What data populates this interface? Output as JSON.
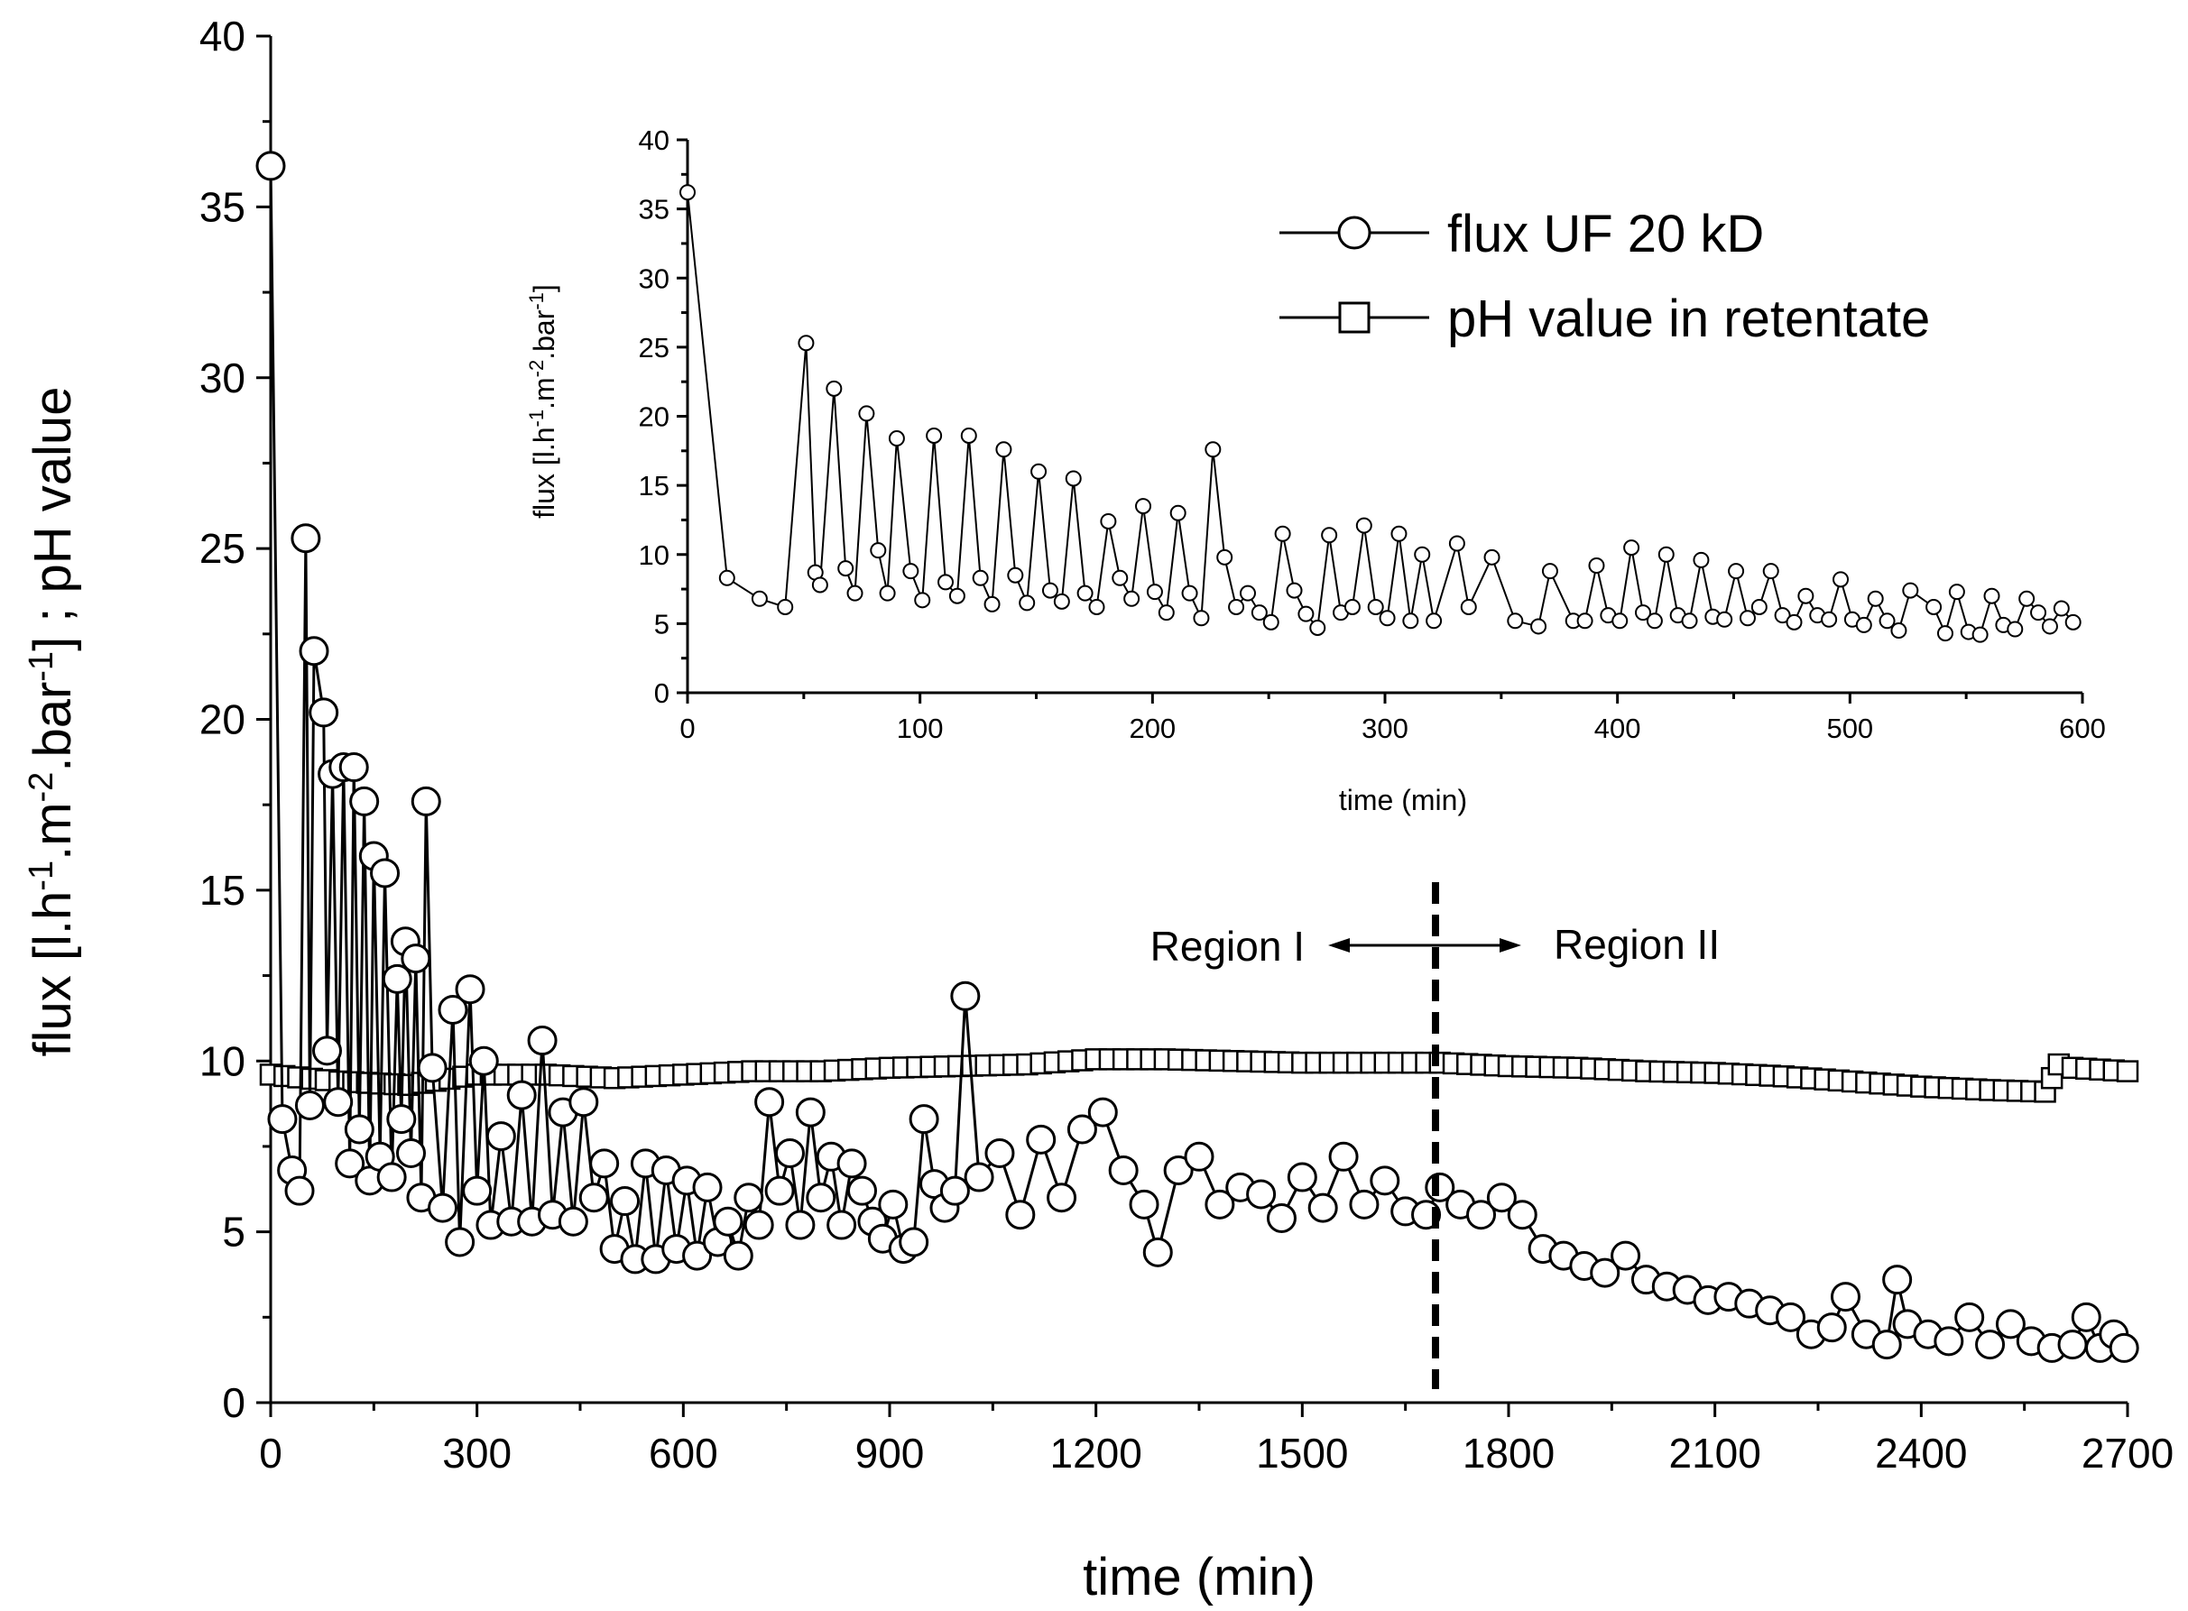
{
  "chart_data": [
    {
      "id": "main",
      "type": "line",
      "title": "",
      "xlabel": "time (min)",
      "ylabel": "flux [l.h^-1.m^-2.bar^-1] ; pH value",
      "xlim": [
        0,
        2700
      ],
      "ylim": [
        0,
        40
      ],
      "xticks": [
        0,
        300,
        600,
        900,
        1200,
        1500,
        1800,
        2100,
        2400,
        2700
      ],
      "yticks": [
        0,
        5,
        10,
        15,
        20,
        25,
        30,
        35,
        40
      ],
      "legend_position": "top-right",
      "annotations": {
        "region_left": "Region I",
        "region_right": "Region II",
        "boundary_x": 1690
      },
      "series": [
        {
          "name": "flux UF 20 kD",
          "marker": "circle",
          "x": [
            0,
            17,
            31,
            42,
            51,
            57,
            63,
            77,
            82,
            90,
            98,
            106,
            115,
            121,
            129,
            136,
            144,
            150,
            159,
            166,
            176,
            184,
            190,
            196,
            204,
            211,
            219,
            226,
            235,
            250,
            265,
            275,
            290,
            300,
            310,
            320,
            335,
            350,
            365,
            380,
            395,
            410,
            425,
            440,
            455,
            470,
            485,
            500,
            515,
            530,
            545,
            560,
            575,
            590,
            605,
            620,
            635,
            650,
            665,
            680,
            695,
            710,
            725,
            740,
            755,
            770,
            785,
            800,
            815,
            830,
            845,
            860,
            875,
            890,
            905,
            920,
            935,
            950,
            965,
            980,
            995,
            1010,
            1030,
            1060,
            1090,
            1120,
            1150,
            1180,
            1210,
            1240,
            1270,
            1290,
            1320,
            1350,
            1380,
            1410,
            1440,
            1470,
            1500,
            1530,
            1560,
            1590,
            1620,
            1650,
            1680,
            1700,
            1730,
            1760,
            1790,
            1820,
            1850,
            1880,
            1910,
            1940,
            1970,
            2000,
            2030,
            2060,
            2090,
            2120,
            2150,
            2180,
            2210,
            2240,
            2270,
            2290,
            2320,
            2350,
            2365,
            2380,
            2410,
            2440,
            2470,
            2500,
            2530,
            2560,
            2590,
            2620,
            2640,
            2660,
            2680,
            2695
          ],
          "values": [
            36.2,
            8.3,
            6.8,
            6.2,
            25.3,
            8.7,
            22.0,
            20.2,
            10.3,
            18.4,
            8.8,
            18.6,
            7.0,
            18.6,
            8.0,
            17.6,
            6.5,
            16.0,
            7.2,
            15.5,
            6.6,
            12.4,
            8.3,
            13.5,
            7.3,
            13.0,
            6.0,
            17.6,
            9.8,
            5.7,
            11.5,
            4.7,
            12.1,
            6.2,
            10.0,
            5.2,
            7.8,
            5.3,
            9.0,
            5.3,
            10.6,
            5.5,
            8.5,
            5.3,
            8.8,
            6.0,
            7.0,
            4.5,
            5.9,
            4.2,
            7.0,
            4.2,
            6.8,
            4.5,
            6.5,
            4.3,
            6.3,
            4.7,
            5.3,
            4.3,
            6.0,
            5.2,
            8.8,
            6.2,
            7.3,
            5.2,
            8.5,
            6.0,
            7.2,
            5.2,
            7.0,
            6.2,
            5.3,
            4.8,
            5.8,
            4.5,
            4.7,
            8.3,
            6.4,
            5.7,
            6.2,
            11.9,
            6.6,
            7.3,
            5.5,
            7.7,
            6.0,
            8.0,
            8.5,
            6.8,
            5.8,
            4.4,
            6.8,
            7.2,
            5.8,
            6.3,
            6.1,
            5.4,
            6.6,
            5.7,
            7.2,
            5.8,
            6.5,
            5.6,
            5.5,
            6.3,
            5.8,
            5.5,
            6.0,
            5.5,
            4.5,
            4.3,
            4.0,
            3.8,
            4.3,
            3.6,
            3.4,
            3.3,
            3.0,
            3.1,
            2.9,
            2.7,
            2.5,
            2.0,
            2.2,
            3.1,
            2.0,
            1.7,
            3.6,
            2.3,
            2.0,
            1.8,
            2.5,
            1.7,
            2.3,
            1.8,
            1.6,
            1.7,
            2.5,
            1.6,
            2.0,
            1.6
          ]
        },
        {
          "name": "pH value in retentate",
          "marker": "square",
          "x": [
            0,
            100,
            200,
            300,
            400,
            500,
            600,
            700,
            800,
            900,
            1000,
            1100,
            1200,
            1300,
            1400,
            1500,
            1600,
            1700,
            1800,
            1900,
            2000,
            2100,
            2200,
            2300,
            2400,
            2500,
            2580,
            2600,
            2620,
            2700
          ],
          "values": [
            9.6,
            9.4,
            9.3,
            9.6,
            9.6,
            9.5,
            9.6,
            9.7,
            9.7,
            9.8,
            9.85,
            9.9,
            10.05,
            10.05,
            10.0,
            9.95,
            9.95,
            9.95,
            9.85,
            9.8,
            9.7,
            9.65,
            9.55,
            9.4,
            9.25,
            9.15,
            9.1,
            9.9,
            9.8,
            9.7
          ]
        }
      ]
    },
    {
      "id": "inset",
      "type": "line",
      "title": "",
      "xlabel": "time (min)",
      "ylabel": "flux [l.h^-1.m^-2.bar^-1]",
      "xlim": [
        0,
        600
      ],
      "ylim": [
        0,
        40
      ],
      "xticks": [
        0,
        100,
        200,
        300,
        400,
        500,
        600
      ],
      "yticks": [
        0,
        5,
        10,
        15,
        20,
        25,
        30,
        35,
        40
      ],
      "series": [
        {
          "name": "flux UF 20 kD",
          "marker": "circle",
          "x": [
            0,
            17,
            31,
            42,
            51,
            55,
            57,
            63,
            68,
            72,
            77,
            82,
            86,
            90,
            96,
            101,
            106,
            111,
            116,
            121,
            126,
            131,
            136,
            141,
            146,
            151,
            156,
            161,
            166,
            171,
            176,
            181,
            186,
            191,
            196,
            201,
            206,
            211,
            216,
            221,
            226,
            231,
            236,
            241,
            246,
            251,
            256,
            261,
            266,
            271,
            276,
            281,
            286,
            291,
            296,
            301,
            306,
            311,
            316,
            321,
            331,
            336,
            346,
            356,
            366,
            371,
            381,
            386,
            391,
            396,
            401,
            406,
            411,
            416,
            421,
            426,
            431,
            436,
            441,
            446,
            451,
            456,
            461,
            466,
            471,
            476,
            481,
            486,
            491,
            496,
            501,
            506,
            511,
            516,
            521,
            526,
            536,
            541,
            546,
            551,
            556,
            561,
            566,
            571,
            576,
            581,
            586,
            591,
            596
          ],
          "values": [
            36.2,
            8.3,
            6.8,
            6.2,
            25.3,
            8.7,
            7.8,
            22.0,
            9.0,
            7.2,
            20.2,
            10.3,
            7.2,
            18.4,
            8.8,
            6.7,
            18.6,
            8.0,
            7.0,
            18.6,
            8.3,
            6.4,
            17.6,
            8.5,
            6.5,
            16.0,
            7.4,
            6.6,
            15.5,
            7.2,
            6.2,
            12.4,
            8.3,
            6.8,
            13.5,
            7.3,
            5.8,
            13.0,
            7.2,
            5.4,
            17.6,
            9.8,
            6.2,
            7.2,
            5.8,
            5.1,
            11.5,
            7.4,
            5.7,
            4.7,
            11.4,
            5.8,
            6.2,
            12.1,
            6.2,
            5.4,
            11.5,
            5.2,
            10.0,
            5.2,
            10.8,
            6.2,
            9.8,
            5.2,
            4.8,
            8.8,
            5.2,
            5.2,
            9.2,
            5.6,
            5.2,
            10.5,
            5.8,
            5.2,
            10.0,
            5.6,
            5.2,
            9.6,
            5.5,
            5.3,
            8.8,
            5.4,
            6.2,
            8.8,
            5.6,
            5.1,
            7.0,
            5.6,
            5.3,
            8.2,
            5.3,
            4.9,
            6.8,
            5.2,
            4.5,
            7.4,
            6.2,
            4.3,
            7.3,
            4.4,
            4.2,
            7.0,
            4.9,
            4.6,
            6.8,
            5.8,
            4.8,
            6.1,
            5.1
          ]
        }
      ]
    }
  ]
}
